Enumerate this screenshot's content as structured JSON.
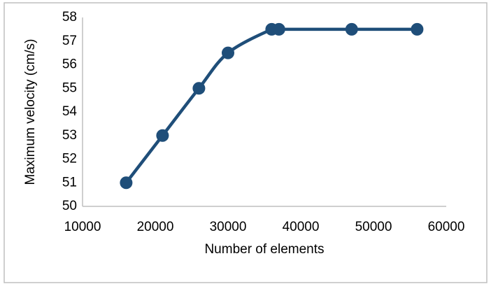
{
  "chart_data": {
    "type": "line",
    "x_label": "Number of elements",
    "y_label": "Maximum velocity (cm/s)",
    "x": [
      16000,
      21000,
      26000,
      30000,
      36000,
      37000,
      47000,
      56000
    ],
    "series": [
      {
        "color": "#1f4e79",
        "values": [
          51,
          53,
          55,
          56.5,
          57.5,
          57.5,
          57.5,
          57.5
        ]
      }
    ],
    "xlim": [
      10000,
      60000
    ],
    "xticks": [
      10000,
      20000,
      30000,
      40000,
      50000,
      60000
    ],
    "ylim": [
      50,
      58
    ],
    "yticks": [
      50,
      51,
      52,
      53,
      54,
      55,
      56,
      57,
      58
    ],
    "grid": false,
    "smooth": true
  }
}
